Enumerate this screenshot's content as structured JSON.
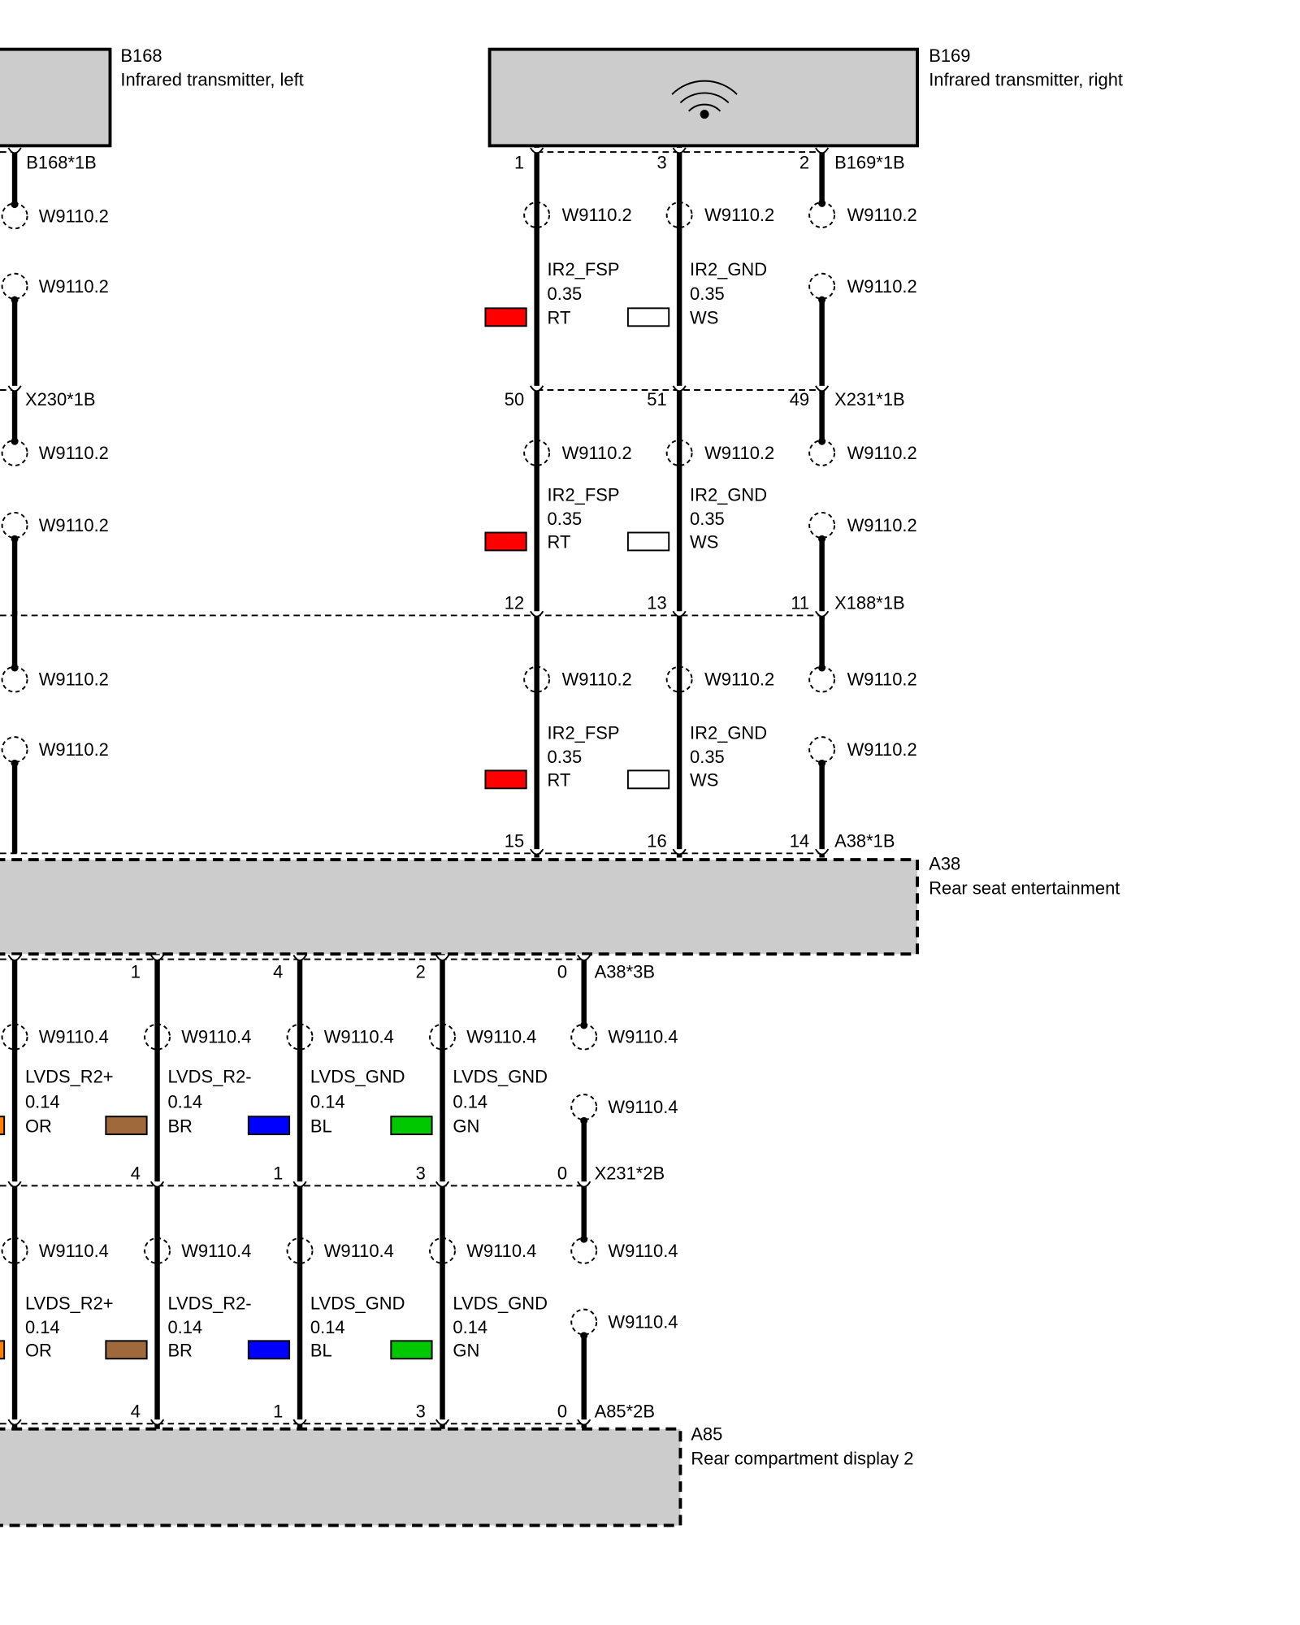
{
  "components": [
    {
      "id": "B168",
      "name": "Infrared transmitter, left"
    },
    {
      "id": "B169",
      "name": "Infrared transmitter, right"
    },
    {
      "id": "A38",
      "name": "Rear seat entertainment"
    },
    {
      "id": "A85",
      "name": "Rear compartment display 2"
    }
  ],
  "left_harness": {
    "connectors": [
      "B168*1B",
      "X230*1B"
    ],
    "segments": [
      {
        "splices": [
          "W9110.2",
          "W9110.2"
        ]
      },
      {
        "splices": [
          "W9110.2",
          "W9110.2"
        ]
      },
      {
        "splices": [
          "W9110.2",
          "W9110.2"
        ]
      }
    ]
  },
  "right_harness": {
    "connectors": [
      {
        "id": "B169*1B",
        "pins": [
          "1",
          "3",
          "2"
        ]
      },
      {
        "id": "X231*1B",
        "pins": [
          "50",
          "51",
          "49"
        ]
      },
      {
        "id": "X188*1B",
        "pins": [
          "12",
          "13",
          "11"
        ]
      },
      {
        "id": "A38*1B",
        "pins": [
          "15",
          "16",
          "14"
        ]
      }
    ],
    "segments": [
      {
        "splices": [
          "W9110.2",
          "W9110.2",
          "W9110.2",
          "W9110.2"
        ],
        "wires": [
          {
            "signal": "IR2_FSP",
            "size": "0.35",
            "color": "RT",
            "swatch": "#ff0000"
          },
          {
            "signal": "IR2_GND",
            "size": "0.35",
            "color": "WS",
            "swatch": "#ffffff"
          }
        ]
      },
      {
        "splices": [
          "W9110.2",
          "W9110.2",
          "W9110.2",
          "W9110.2"
        ],
        "wires": [
          {
            "signal": "IR2_FSP",
            "size": "0.35",
            "color": "RT",
            "swatch": "#ff0000"
          },
          {
            "signal": "IR2_GND",
            "size": "0.35",
            "color": "WS",
            "swatch": "#ffffff"
          }
        ]
      },
      {
        "splices": [
          "W9110.2",
          "W9110.2",
          "W9110.2",
          "W9110.2"
        ],
        "wires": [
          {
            "signal": "IR2_FSP",
            "size": "0.35",
            "color": "RT",
            "swatch": "#ff0000"
          },
          {
            "signal": "IR2_GND",
            "size": "0.35",
            "color": "WS",
            "swatch": "#ffffff"
          }
        ]
      }
    ]
  },
  "bottom_harness": {
    "connectors": [
      {
        "id": "A38*3B",
        "pins": [
          "1",
          "4",
          "2",
          "0"
        ]
      },
      {
        "id": "X231*2B",
        "pins": [
          "4",
          "1",
          "3",
          "0"
        ]
      },
      {
        "id": "A85*2B",
        "pins": [
          "4",
          "1",
          "3",
          "0"
        ]
      }
    ],
    "segments": [
      {
        "splices": [
          "W9110.4",
          "W9110.4",
          "W9110.4",
          "W9110.4",
          "W9110.4",
          "W9110.4"
        ],
        "wires": [
          {
            "signal": "LVDS_R2+",
            "size": "0.14",
            "color": "OR",
            "swatch": "#ff8000"
          },
          {
            "signal": "LVDS_R2-",
            "size": "0.14",
            "color": "BR",
            "swatch": "#a0693c"
          },
          {
            "signal": "LVDS_GND",
            "size": "0.14",
            "color": "BL",
            "swatch": "#0000ff"
          },
          {
            "signal": "LVDS_GND",
            "size": "0.14",
            "color": "GN",
            "swatch": "#00c800"
          }
        ]
      },
      {
        "splices": [
          "W9110.4",
          "W9110.4",
          "W9110.4",
          "W9110.4",
          "W9110.4",
          "W9110.4"
        ],
        "wires": [
          {
            "signal": "LVDS_R2+",
            "size": "0.14",
            "color": "OR",
            "swatch": "#ff8000"
          },
          {
            "signal": "LVDS_R2-",
            "size": "0.14",
            "color": "BR",
            "swatch": "#a0693c"
          },
          {
            "signal": "LVDS_GND",
            "size": "0.14",
            "color": "BL",
            "swatch": "#0000ff"
          },
          {
            "signal": "LVDS_GND",
            "size": "0.14",
            "color": "GN",
            "swatch": "#00c800"
          }
        ]
      }
    ]
  }
}
